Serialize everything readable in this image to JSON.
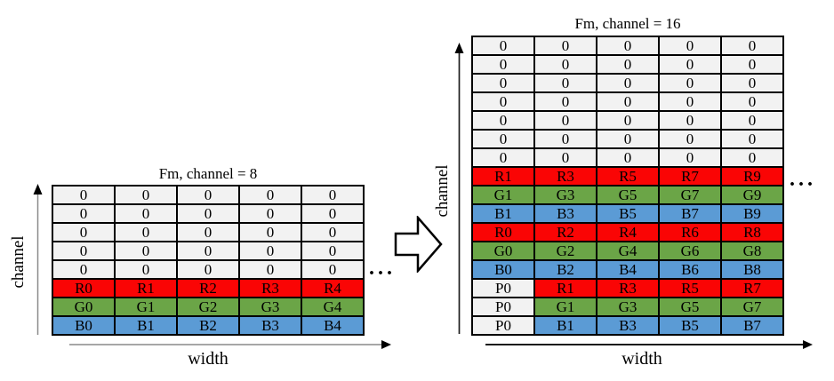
{
  "palette": {
    "red": "#FA0505",
    "green": "#6BA547",
    "blue": "#5B9BD5",
    "zero": "#F2F2F2"
  },
  "left_panel": {
    "title": "Fm, channel = 8",
    "x_axis_label": "width",
    "y_axis_label": "channel",
    "ellipsis": "...",
    "matrix": {
      "rows": [
        {
          "fill": "zero",
          "cells": [
            "0",
            "0",
            "0",
            "0",
            "0"
          ]
        },
        {
          "fill": "zero",
          "cells": [
            "0",
            "0",
            "0",
            "0",
            "0"
          ]
        },
        {
          "fill": "zero",
          "cells": [
            "0",
            "0",
            "0",
            "0",
            "0"
          ]
        },
        {
          "fill": "zero",
          "cells": [
            "0",
            "0",
            "0",
            "0",
            "0"
          ]
        },
        {
          "fill": "zero",
          "cells": [
            "0",
            "0",
            "0",
            "0",
            "0"
          ]
        },
        {
          "fill": "red",
          "cells": [
            "R0",
            "R1",
            "R2",
            "R3",
            "R4"
          ]
        },
        {
          "fill": "green",
          "cells": [
            "G0",
            "G1",
            "G2",
            "G3",
            "G4"
          ]
        },
        {
          "fill": "blue",
          "cells": [
            "B0",
            "B1",
            "B2",
            "B3",
            "B4"
          ]
        }
      ]
    }
  },
  "right_panel": {
    "title": "Fm, channel = 16",
    "x_axis_label": "width",
    "y_axis_label": "channel",
    "ellipsis": "...",
    "matrix": {
      "rows": [
        {
          "fill": "zero",
          "cells": [
            "0",
            "0",
            "0",
            "0",
            "0"
          ]
        },
        {
          "fill": "zero",
          "cells": [
            "0",
            "0",
            "0",
            "0",
            "0"
          ]
        },
        {
          "fill": "zero",
          "cells": [
            "0",
            "0",
            "0",
            "0",
            "0"
          ]
        },
        {
          "fill": "zero",
          "cells": [
            "0",
            "0",
            "0",
            "0",
            "0"
          ]
        },
        {
          "fill": "zero",
          "cells": [
            "0",
            "0",
            "0",
            "0",
            "0"
          ]
        },
        {
          "fill": "zero",
          "cells": [
            "0",
            "0",
            "0",
            "0",
            "0"
          ]
        },
        {
          "fill": "zero",
          "cells": [
            "0",
            "0",
            "0",
            "0",
            "0"
          ]
        },
        {
          "fill": "red",
          "cells": [
            "R1",
            "R3",
            "R5",
            "R7",
            "R9"
          ]
        },
        {
          "fill": "green",
          "cells": [
            "G1",
            "G3",
            "G5",
            "G7",
            "G9"
          ]
        },
        {
          "fill": "blue",
          "cells": [
            "B1",
            "B3",
            "B5",
            "B7",
            "B9"
          ]
        },
        {
          "fill": "red",
          "cells": [
            "R0",
            "R2",
            "R4",
            "R6",
            "R8"
          ]
        },
        {
          "fill": "green",
          "cells": [
            "G0",
            "G2",
            "G4",
            "G6",
            "G8"
          ]
        },
        {
          "fill": "blue",
          "cells": [
            "B0",
            "B2",
            "B4",
            "B6",
            "B8"
          ]
        },
        {
          "fill": "red",
          "fills": [
            "zero",
            "red",
            "red",
            "red",
            "red"
          ],
          "cells": [
            "P0",
            "R1",
            "R3",
            "R5",
            "R7"
          ]
        },
        {
          "fill": "green",
          "fills": [
            "zero",
            "green",
            "green",
            "green",
            "green"
          ],
          "cells": [
            "P0",
            "G1",
            "G3",
            "G5",
            "G7"
          ]
        },
        {
          "fill": "blue",
          "fills": [
            "zero",
            "blue",
            "blue",
            "blue",
            "blue"
          ],
          "cells": [
            "P0",
            "B1",
            "B3",
            "B5",
            "B7"
          ]
        }
      ]
    }
  }
}
